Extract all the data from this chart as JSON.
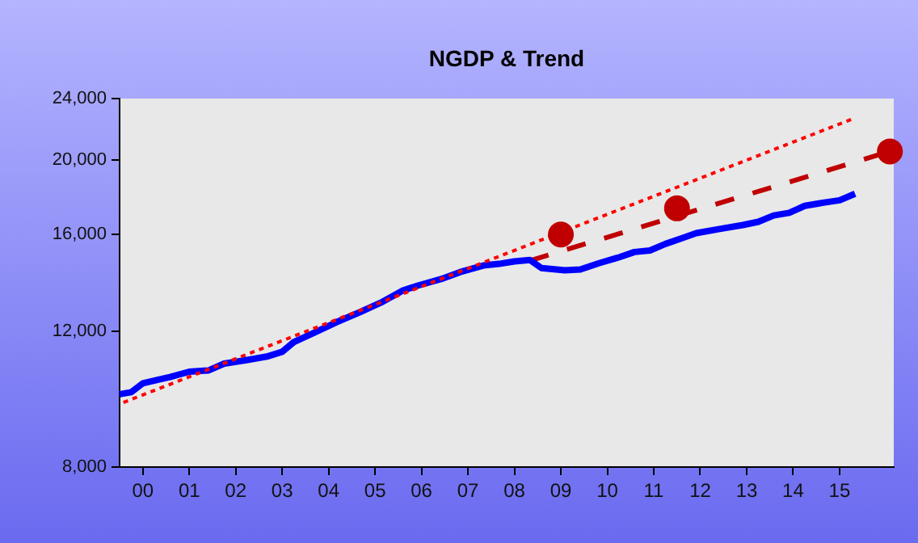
{
  "chart_data": {
    "type": "line",
    "title": "NGDP & Trend",
    "log": "y",
    "grid": false,
    "legend": false,
    "xlim": [
      "2000-01",
      "2016-09"
    ],
    "xticks": [
      {
        "value": "2000-07-01",
        "label": "00"
      },
      {
        "value": "2001-07-01",
        "label": "01"
      },
      {
        "value": "2002-07-01",
        "label": "02"
      },
      {
        "value": "2003-07-01",
        "label": "03"
      },
      {
        "value": "2004-07-01",
        "label": "04"
      },
      {
        "value": "2005-07-01",
        "label": "05"
      },
      {
        "value": "2006-07-01",
        "label": "06"
      },
      {
        "value": "2007-07-01",
        "label": "07"
      },
      {
        "value": "2008-07-01",
        "label": "08"
      },
      {
        "value": "2009-07-01",
        "label": "09"
      },
      {
        "value": "2010-07-01",
        "label": "10"
      },
      {
        "value": "2011-07-01",
        "label": "11"
      },
      {
        "value": "2012-07-01",
        "label": "12"
      },
      {
        "value": "2013-07-01",
        "label": "13"
      },
      {
        "value": "2014-07-01",
        "label": "14"
      },
      {
        "value": "2015-07-01",
        "label": "15"
      }
    ],
    "ylim": [
      8000,
      24000
    ],
    "yticks": [
      {
        "value": 8000,
        "label": "8,000"
      },
      {
        "value": 12000,
        "label": "12,000"
      },
      {
        "value": 16000,
        "label": "16,000"
      },
      {
        "value": 20000,
        "label": "20,000"
      },
      {
        "value": 24000,
        "label": "24,000"
      }
    ],
    "series": [
      {
        "type": "line",
        "color": "#ff0000",
        "line_style": "dotted",
        "marker": "none",
        "x": [
          "2000-02",
          "2015-10"
        ],
        "values": [
          9700,
          22550
        ]
      },
      {
        "type": "line",
        "color": "#0000ff",
        "line_style": "solid",
        "marker": "none",
        "x": [
          "2000-01",
          "2000-04",
          "2000-07",
          "2000-11",
          "2001-02",
          "2001-07",
          "2001-12",
          "2002-04",
          "2002-10",
          "2003-03",
          "2003-07",
          "2003-10",
          "2004-04",
          "2004-09",
          "2005-03",
          "2005-09",
          "2006-02",
          "2006-06",
          "2006-12",
          "2007-05",
          "2007-11",
          "2008-03",
          "2008-07",
          "2008-11",
          "2009-02",
          "2009-08",
          "2009-12",
          "2010-05",
          "2010-10",
          "2011-02",
          "2011-06",
          "2011-10",
          "2012-02",
          "2012-06",
          "2012-12",
          "2013-06",
          "2013-10",
          "2014-02",
          "2014-06",
          "2014-10",
          "2015-02",
          "2015-07",
          "2015-11"
        ],
        "values": [
          9940,
          10000,
          10270,
          10380,
          10460,
          10630,
          10670,
          10890,
          11010,
          11120,
          11280,
          11610,
          11990,
          12320,
          12690,
          13100,
          13530,
          13740,
          14010,
          14310,
          14590,
          14660,
          14770,
          14830,
          14480,
          14380,
          14420,
          14700,
          14950,
          15190,
          15260,
          15560,
          15810,
          16070,
          16270,
          16460,
          16620,
          16940,
          17070,
          17430,
          17570,
          17720,
          18070
        ]
      },
      {
        "type": "line",
        "color": "#c00000",
        "line_style": "dashed",
        "marker": "none",
        "x": [
          "2008-11",
          "2016-08"
        ],
        "values": [
          14800,
          20500
        ]
      },
      {
        "type": "scatter",
        "color": "#c00000",
        "marker": "circle",
        "x": [
          "2009-07",
          "2012-01",
          "2016-08"
        ],
        "values": [
          16000,
          17300,
          20500
        ]
      }
    ]
  }
}
